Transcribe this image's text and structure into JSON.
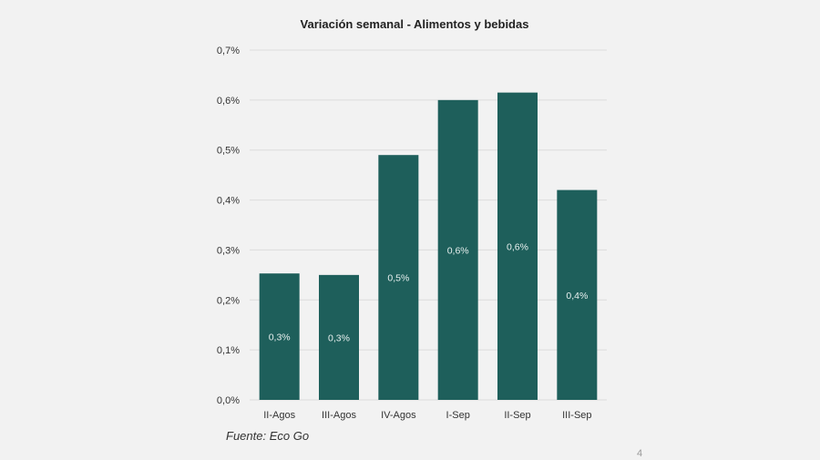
{
  "chart_data": {
    "type": "bar",
    "title": "Variación semanal - Alimentos y bebidas",
    "xlabel": "",
    "ylabel": "",
    "categories": [
      "II-Agos",
      "III-Agos",
      "IV-Agos",
      "I-Sep",
      "II-Sep",
      "III-Sep"
    ],
    "values": [
      0.253,
      0.25,
      0.49,
      0.6,
      0.615,
      0.42
    ],
    "data_labels": [
      "0,3%",
      "0,3%",
      "0,5%",
      "0,6%",
      "0,6%",
      "0,4%"
    ],
    "ylim": [
      0,
      0.7
    ],
    "y_ticks": [
      0,
      0.1,
      0.2,
      0.3,
      0.4,
      0.5,
      0.6,
      0.7
    ],
    "y_tick_labels": [
      "0,0%",
      "0,1%",
      "0,2%",
      "0,3%",
      "0,4%",
      "0,5%",
      "0,6%",
      "0,7%"
    ],
    "grid": true,
    "legend": "none",
    "bar_color": "#1e5f5b"
  },
  "source_note": "Fuente: Eco Go",
  "page_number": "4"
}
